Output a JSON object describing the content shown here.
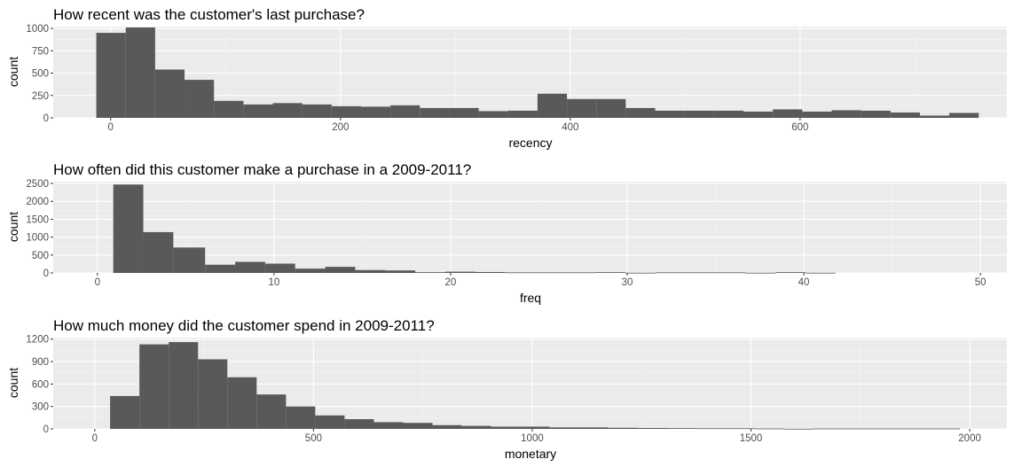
{
  "chart_data": [
    {
      "type": "bar",
      "title": "How recent was the customer's last purchase?",
      "xlabel": "recency",
      "ylabel": "count",
      "xlim": [
        -50,
        780
      ],
      "ylim": [
        0,
        1020
      ],
      "xticks": [
        0,
        200,
        400,
        600
      ],
      "yticks": [
        0,
        250,
        500,
        750,
        1000
      ],
      "grid": true,
      "bar_color": "#595959",
      "bins": [
        {
          "x0": -12.5,
          "x1": 13.1,
          "count": 950
        },
        {
          "x0": 13.1,
          "x1": 38.7,
          "count": 1010
        },
        {
          "x0": 38.7,
          "x1": 64.3,
          "count": 540
        },
        {
          "x0": 64.3,
          "x1": 89.9,
          "count": 425
        },
        {
          "x0": 89.9,
          "x1": 115.5,
          "count": 190
        },
        {
          "x0": 115.5,
          "x1": 141.1,
          "count": 150
        },
        {
          "x0": 141.1,
          "x1": 166.7,
          "count": 165
        },
        {
          "x0": 166.7,
          "x1": 192.3,
          "count": 150
        },
        {
          "x0": 192.3,
          "x1": 217.9,
          "count": 130
        },
        {
          "x0": 217.9,
          "x1": 243.5,
          "count": 125
        },
        {
          "x0": 243.5,
          "x1": 269.1,
          "count": 140
        },
        {
          "x0": 269.1,
          "x1": 294.7,
          "count": 110
        },
        {
          "x0": 294.7,
          "x1": 320.3,
          "count": 110
        },
        {
          "x0": 320.3,
          "x1": 345.9,
          "count": 75
        },
        {
          "x0": 345.9,
          "x1": 371.5,
          "count": 80
        },
        {
          "x0": 371.5,
          "x1": 397.1,
          "count": 270
        },
        {
          "x0": 397.1,
          "x1": 422.7,
          "count": 210
        },
        {
          "x0": 422.7,
          "x1": 448.3,
          "count": 210
        },
        {
          "x0": 448.3,
          "x1": 473.9,
          "count": 110
        },
        {
          "x0": 473.9,
          "x1": 499.5,
          "count": 80
        },
        {
          "x0": 499.5,
          "x1": 525.1,
          "count": 80
        },
        {
          "x0": 525.1,
          "x1": 550.7,
          "count": 80
        },
        {
          "x0": 550.7,
          "x1": 576.3,
          "count": 70
        },
        {
          "x0": 576.3,
          "x1": 601.9,
          "count": 95
        },
        {
          "x0": 601.9,
          "x1": 627.5,
          "count": 70
        },
        {
          "x0": 627.5,
          "x1": 653.1,
          "count": 85
        },
        {
          "x0": 653.1,
          "x1": 678.7,
          "count": 80
        },
        {
          "x0": 678.7,
          "x1": 704.3,
          "count": 60
        },
        {
          "x0": 704.3,
          "x1": 729.9,
          "count": 25
        },
        {
          "x0": 729.9,
          "x1": 755.5,
          "count": 55
        }
      ]
    },
    {
      "type": "bar",
      "title": "How often did this customer make a purchase in a 2009-2011?",
      "xlabel": "freq",
      "ylabel": "count",
      "xlim": [
        -2.5,
        51.5
      ],
      "ylim": [
        0,
        2550
      ],
      "xticks": [
        0,
        10,
        20,
        30,
        40,
        50
      ],
      "yticks": [
        0,
        500,
        1000,
        1500,
        2000,
        2500
      ],
      "grid": true,
      "bar_color": "#595959",
      "bins": [
        {
          "x0": 0.9,
          "x1": 2.6,
          "count": 2470
        },
        {
          "x0": 2.6,
          "x1": 4.3,
          "count": 1140
        },
        {
          "x0": 4.3,
          "x1": 6.1,
          "count": 710
        },
        {
          "x0": 6.1,
          "x1": 7.8,
          "count": 230
        },
        {
          "x0": 7.8,
          "x1": 9.5,
          "count": 310
        },
        {
          "x0": 9.5,
          "x1": 11.2,
          "count": 260
        },
        {
          "x0": 11.2,
          "x1": 12.9,
          "count": 120
        },
        {
          "x0": 12.9,
          "x1": 14.6,
          "count": 170
        },
        {
          "x0": 14.6,
          "x1": 16.3,
          "count": 80
        },
        {
          "x0": 16.3,
          "x1": 18.0,
          "count": 70
        },
        {
          "x0": 18.0,
          "x1": 19.7,
          "count": 20
        },
        {
          "x0": 19.7,
          "x1": 21.4,
          "count": 35
        },
        {
          "x0": 21.4,
          "x1": 23.1,
          "count": 25
        },
        {
          "x0": 23.1,
          "x1": 24.8,
          "count": 15
        },
        {
          "x0": 24.8,
          "x1": 26.5,
          "count": 15
        },
        {
          "x0": 26.5,
          "x1": 28.2,
          "count": 15
        },
        {
          "x0": 28.2,
          "x1": 29.9,
          "count": 20
        },
        {
          "x0": 29.9,
          "x1": 31.6,
          "count": 5
        },
        {
          "x0": 31.6,
          "x1": 33.3,
          "count": 15
        },
        {
          "x0": 33.3,
          "x1": 35.0,
          "count": 15
        },
        {
          "x0": 35.0,
          "x1": 36.7,
          "count": 15
        },
        {
          "x0": 36.7,
          "x1": 38.4,
          "count": 5
        },
        {
          "x0": 38.4,
          "x1": 40.1,
          "count": 20
        },
        {
          "x0": 40.1,
          "x1": 41.8,
          "count": 5
        }
      ]
    },
    {
      "type": "bar",
      "title": "How much money did the customer spend in 2009-2011?",
      "xlabel": "monetary",
      "ylabel": "count",
      "xlim": [
        -95,
        2085
      ],
      "ylim": [
        0,
        1220
      ],
      "xticks": [
        0,
        500,
        1000,
        1500,
        2000
      ],
      "yticks": [
        0,
        300,
        600,
        900,
        1200
      ],
      "grid": true,
      "bar_color": "#595959",
      "bins": [
        {
          "x0": 35,
          "x1": 102,
          "count": 440
        },
        {
          "x0": 102,
          "x1": 169,
          "count": 1130
        },
        {
          "x0": 169,
          "x1": 236,
          "count": 1160
        },
        {
          "x0": 236,
          "x1": 303,
          "count": 930
        },
        {
          "x0": 303,
          "x1": 370,
          "count": 690
        },
        {
          "x0": 370,
          "x1": 437,
          "count": 460
        },
        {
          "x0": 437,
          "x1": 504,
          "count": 300
        },
        {
          "x0": 504,
          "x1": 571,
          "count": 180
        },
        {
          "x0": 571,
          "x1": 638,
          "count": 130
        },
        {
          "x0": 638,
          "x1": 705,
          "count": 90
        },
        {
          "x0": 705,
          "x1": 772,
          "count": 80
        },
        {
          "x0": 772,
          "x1": 839,
          "count": 50
        },
        {
          "x0": 839,
          "x1": 906,
          "count": 40
        },
        {
          "x0": 906,
          "x1": 973,
          "count": 30
        },
        {
          "x0": 973,
          "x1": 1040,
          "count": 30
        },
        {
          "x0": 1040,
          "x1": 1107,
          "count": 20
        },
        {
          "x0": 1107,
          "x1": 1174,
          "count": 20
        },
        {
          "x0": 1174,
          "x1": 1241,
          "count": 15
        },
        {
          "x0": 1241,
          "x1": 1308,
          "count": 12
        },
        {
          "x0": 1308,
          "x1": 1375,
          "count": 10
        },
        {
          "x0": 1375,
          "x1": 1442,
          "count": 8
        },
        {
          "x0": 1442,
          "x1": 1509,
          "count": 8
        },
        {
          "x0": 1509,
          "x1": 1576,
          "count": 5
        },
        {
          "x0": 1576,
          "x1": 1643,
          "count": 2
        },
        {
          "x0": 1643,
          "x1": 1710,
          "count": 5
        },
        {
          "x0": 1710,
          "x1": 1777,
          "count": 5
        },
        {
          "x0": 1777,
          "x1": 1844,
          "count": 5
        },
        {
          "x0": 1844,
          "x1": 1911,
          "count": 5
        },
        {
          "x0": 1911,
          "x1": 1978,
          "count": 5
        }
      ]
    }
  ]
}
